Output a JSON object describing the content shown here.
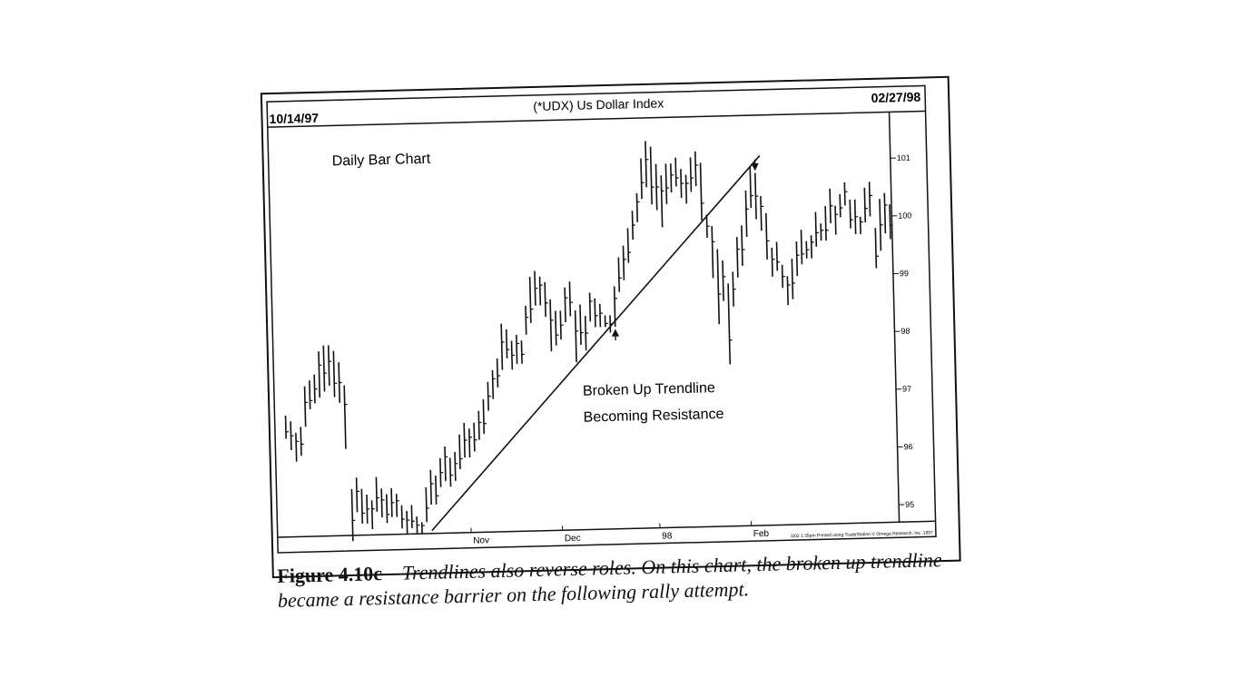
{
  "chart_data": {
    "type": "bar",
    "style": "ohlc",
    "title": "(*UDX) Us Dollar Index",
    "start_date": "10/14/97",
    "end_date": "02/27/98",
    "subtitle": "Daily Bar Chart",
    "annotations": [
      "Broken Up Trendline",
      "Becoming Resistance"
    ],
    "footer": "3/02 1:35pm Printed using TradeStation © Omega Research, Inc. 1997",
    "ylim": [
      94.7,
      101.8
    ],
    "y_ticks": [
      95,
      96,
      97,
      98,
      99,
      100,
      101
    ],
    "x_ticks": [
      {
        "label": "Nov",
        "pos": 0.3
      },
      {
        "label": "Dec",
        "pos": 0.45
      },
      {
        "label": "98",
        "pos": 0.61
      },
      {
        "label": "Feb",
        "pos": 0.76
      }
    ],
    "arrows": [
      {
        "label": "up-arrow",
        "bar": 67
      },
      {
        "label": "down-arrow",
        "bar": 96
      }
    ],
    "trendline": {
      "start": [
        29,
        94.75
      ],
      "end": [
        97,
        101.1
      ]
    },
    "bars": [
      [
        96.8,
        96.4
      ],
      [
        96.7,
        96.2
      ],
      [
        96.5,
        96.0
      ],
      [
        96.6,
        96.1
      ],
      [
        97.3,
        96.6
      ],
      [
        97.4,
        96.9
      ],
      [
        97.5,
        97.0
      ],
      [
        97.9,
        97.1
      ],
      [
        98.0,
        97.2
      ],
      [
        98.0,
        97.3
      ],
      [
        97.9,
        97.1
      ],
      [
        97.7,
        97.0
      ],
      [
        97.3,
        96.2
      ],
      [
        95.5,
        94.6
      ],
      [
        95.7,
        95.1
      ],
      [
        95.5,
        94.9
      ],
      [
        95.4,
        94.9
      ],
      [
        95.3,
        94.8
      ],
      [
        95.7,
        95.1
      ],
      [
        95.5,
        95.0
      ],
      [
        95.4,
        94.9
      ],
      [
        95.5,
        95.0
      ],
      [
        95.4,
        95.0
      ],
      [
        95.2,
        94.8
      ],
      [
        95.1,
        94.7
      ],
      [
        95.2,
        94.8
      ],
      [
        95.0,
        94.7
      ],
      [
        94.9,
        94.7
      ],
      [
        95.5,
        94.9
      ],
      [
        95.8,
        95.2
      ],
      [
        95.7,
        95.2
      ],
      [
        96.0,
        95.5
      ],
      [
        96.2,
        95.6
      ],
      [
        96.0,
        95.5
      ],
      [
        96.1,
        95.6
      ],
      [
        96.4,
        95.8
      ],
      [
        96.6,
        96.0
      ],
      [
        96.5,
        96.0
      ],
      [
        96.6,
        96.1
      ],
      [
        96.8,
        96.3
      ],
      [
        97.0,
        96.4
      ],
      [
        97.3,
        96.8
      ],
      [
        97.5,
        97.0
      ],
      [
        97.7,
        97.2
      ],
      [
        98.3,
        97.5
      ],
      [
        98.2,
        97.7
      ],
      [
        98.0,
        97.5
      ],
      [
        98.1,
        97.6
      ],
      [
        98.0,
        97.6
      ],
      [
        98.6,
        98.1
      ],
      [
        99.1,
        98.3
      ],
      [
        99.2,
        98.6
      ],
      [
        99.1,
        98.6
      ],
      [
        99.0,
        98.4
      ],
      [
        98.7,
        97.8
      ],
      [
        98.5,
        97.9
      ],
      [
        98.5,
        98.0
      ],
      [
        98.9,
        98.3
      ],
      [
        99.0,
        98.4
      ],
      [
        98.5,
        97.6
      ],
      [
        98.6,
        97.9
      ],
      [
        98.4,
        97.8
      ],
      [
        98.8,
        98.3
      ],
      [
        98.7,
        98.2
      ],
      [
        98.6,
        98.2
      ],
      [
        98.4,
        98.2
      ],
      [
        98.4,
        98.1
      ],
      [
        98.9,
        98.2
      ],
      [
        99.4,
        98.8
      ],
      [
        99.6,
        99.0
      ],
      [
        99.9,
        99.3
      ],
      [
        100.2,
        99.7
      ],
      [
        100.5,
        100.0
      ],
      [
        101.1,
        100.4
      ],
      [
        101.4,
        100.6
      ],
      [
        101.3,
        100.3
      ],
      [
        101.0,
        100.2
      ],
      [
        100.8,
        99.9
      ],
      [
        101.0,
        100.3
      ],
      [
        101.0,
        100.5
      ],
      [
        101.1,
        100.6
      ],
      [
        100.9,
        100.4
      ],
      [
        100.8,
        100.3
      ],
      [
        101.1,
        100.5
      ],
      [
        101.2,
        100.6
      ],
      [
        101.0,
        100.0
      ],
      [
        100.1,
        99.7
      ],
      [
        99.9,
        99.0
      ],
      [
        99.5,
        98.2
      ],
      [
        99.3,
        98.6
      ],
      [
        98.9,
        97.5
      ],
      [
        99.1,
        98.5
      ],
      [
        99.7,
        99.0
      ],
      [
        99.9,
        99.2
      ],
      [
        100.5,
        99.7
      ],
      [
        100.9,
        100.2
      ],
      [
        100.8,
        100.0
      ],
      [
        100.4,
        99.8
      ],
      [
        100.1,
        99.3
      ],
      [
        99.5,
        99.0
      ],
      [
        99.6,
        99.1
      ],
      [
        99.2,
        98.8
      ],
      [
        99.0,
        98.5
      ],
      [
        99.3,
        98.6
      ],
      [
        99.6,
        99.0
      ],
      [
        99.8,
        99.2
      ],
      [
        99.6,
        99.3
      ],
      [
        99.7,
        99.3
      ],
      [
        100.1,
        99.5
      ],
      [
        99.9,
        99.6
      ],
      [
        100.2,
        99.6
      ],
      [
        100.5,
        99.9
      ],
      [
        100.2,
        99.7
      ],
      [
        100.4,
        100.0
      ],
      [
        100.6,
        100.2
      ],
      [
        100.3,
        99.8
      ],
      [
        100.3,
        99.7
      ],
      [
        100.0,
        99.7
      ],
      [
        100.5,
        99.9
      ],
      [
        100.6,
        100.0
      ],
      [
        99.8,
        99.1
      ],
      [
        100.3,
        99.4
      ],
      [
        100.4,
        99.7
      ],
      [
        100.2,
        99.6
      ]
    ]
  },
  "caption": {
    "figure_number": "Figure 4.10c",
    "text": "Trendlines also reverse roles. On this chart, the broken up trendline became a resistance barrier on the following rally attempt."
  }
}
